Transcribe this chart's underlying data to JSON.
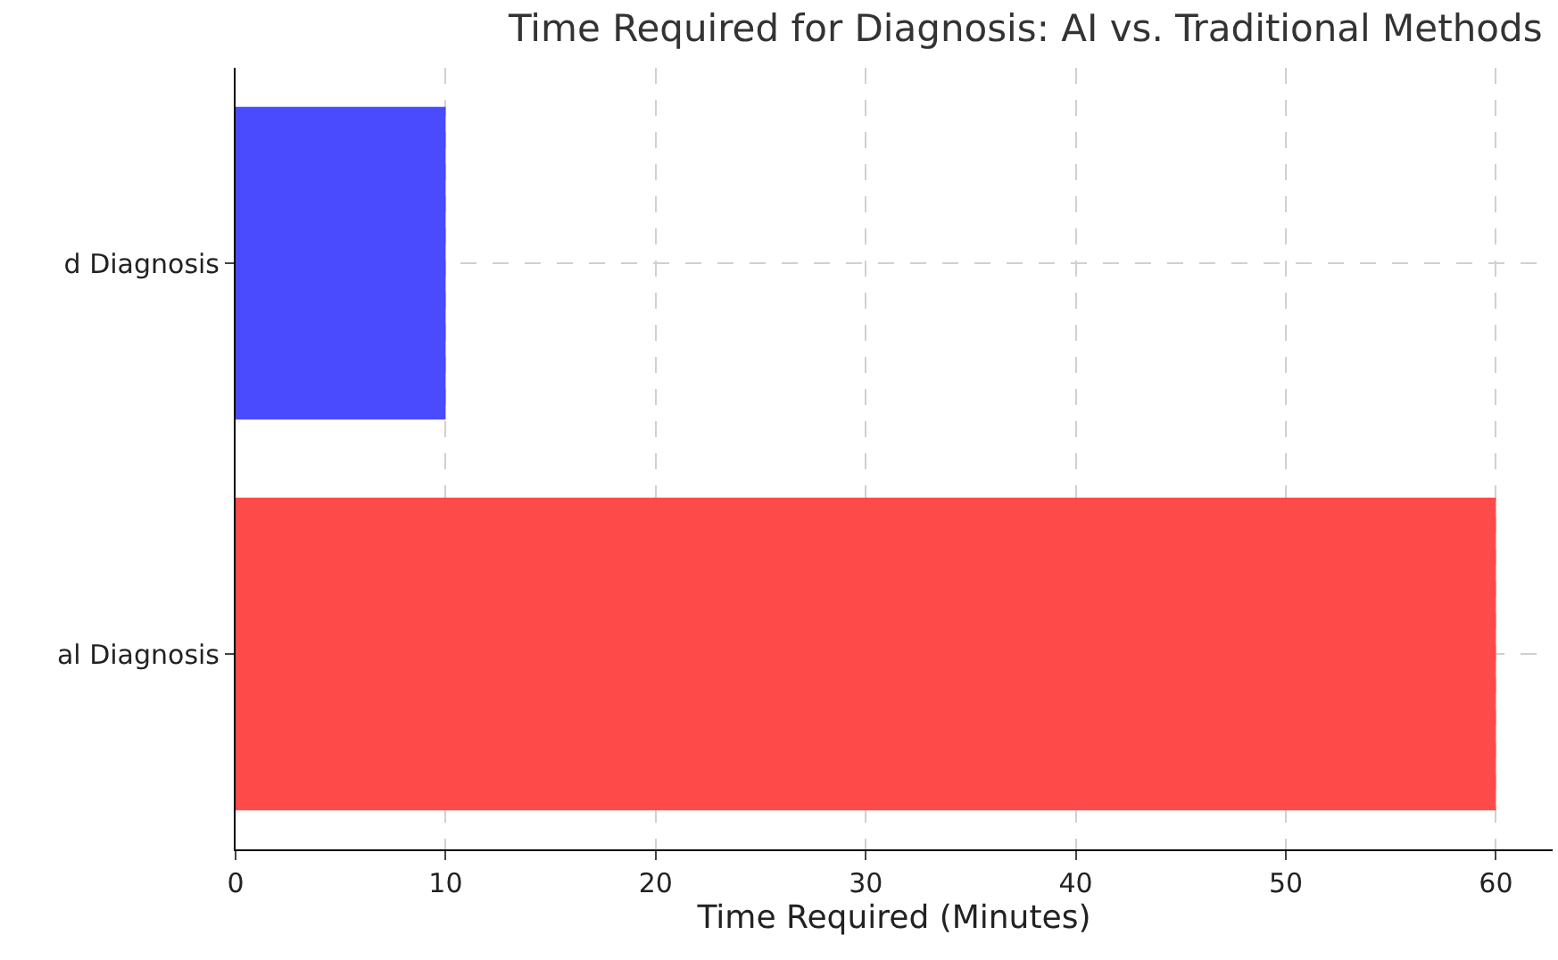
{
  "chart_data": {
    "type": "bar",
    "orientation": "horizontal",
    "title": "Time Required for Diagnosis: AI vs. Traditional Methods",
    "xlabel": "Time Required (Minutes)",
    "categories": [
      "d Diagnosis",
      "al Diagnosis"
    ],
    "values": [
      10,
      60
    ],
    "colors": [
      "#4a4aff",
      "#ff4a4a"
    ],
    "xlim": [
      0,
      62.7
    ],
    "xticks": [
      0,
      10,
      20,
      30,
      40,
      50,
      60
    ],
    "grid": true
  }
}
